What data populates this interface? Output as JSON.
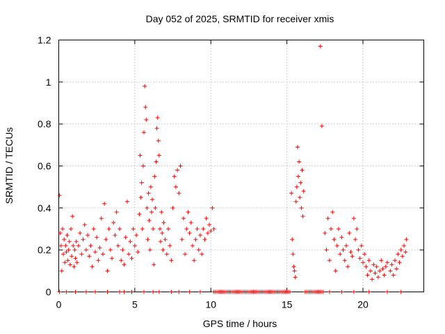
{
  "chart_data": {
    "type": "scatter",
    "title": "Day 052 of 2025, SRMTID for receiver xmis",
    "xlabel": "GPS time / hours",
    "ylabel": "SRMTID / TECUs",
    "xlim": [
      0,
      24
    ],
    "ylim": [
      0,
      1.2
    ],
    "x_ticks": [
      0,
      5,
      10,
      15,
      20
    ],
    "x_tick_labels": [
      "0",
      "5",
      "10",
      "15",
      "20"
    ],
    "y_ticks": [
      0,
      0.2,
      0.4,
      0.6,
      0.8,
      1.0,
      1.2
    ],
    "y_tick_labels": [
      "0",
      "0.2",
      "0.4",
      "0.6",
      "0.8",
      "1",
      "1.2"
    ],
    "grid": true,
    "marker": "plus",
    "color": "#ff0000",
    "series": [
      {
        "name": "SRMTID",
        "points": [
          [
            0.05,
            0.46
          ],
          [
            0.1,
            0.28
          ],
          [
            0.15,
            0.22
          ],
          [
            0.2,
            0.1
          ],
          [
            0.25,
            0.3
          ],
          [
            0.3,
            0.18
          ],
          [
            0.35,
            0.25
          ],
          [
            0.4,
            0.14
          ],
          [
            0.45,
            0.22
          ],
          [
            0.5,
            0.19
          ],
          [
            0.55,
            0.27
          ],
          [
            0.6,
            0.15
          ],
          [
            0.65,
            0.2
          ],
          [
            0.7,
            0.24
          ],
          [
            0.75,
            0.13
          ],
          [
            0.8,
            0.3
          ],
          [
            0.85,
            0.17
          ],
          [
            0.9,
            0.36
          ],
          [
            0.95,
            0.22
          ],
          [
            1.0,
            0.12
          ],
          [
            1.05,
            0.2
          ],
          [
            1.1,
            0.16
          ],
          [
            1.15,
            0.24
          ],
          [
            1.2,
            0.14
          ],
          [
            1.3,
            0.22
          ],
          [
            1.4,
            0.28
          ],
          [
            1.5,
            0.18
          ],
          [
            1.6,
            0.25
          ],
          [
            1.7,
            0.32
          ],
          [
            1.8,
            0.2
          ],
          [
            1.9,
            0.27
          ],
          [
            2.0,
            0.17
          ],
          [
            2.1,
            0.22
          ],
          [
            2.2,
            0.12
          ],
          [
            2.3,
            0.3
          ],
          [
            2.4,
            0.19
          ],
          [
            2.5,
            0.26
          ],
          [
            2.6,
            0.15
          ],
          [
            2.7,
            0.21
          ],
          [
            2.8,
            0.35
          ],
          [
            2.9,
            0.18
          ],
          [
            3.0,
            0.42
          ],
          [
            3.1,
            0.25
          ],
          [
            3.2,
            0.1
          ],
          [
            3.3,
            0.3
          ],
          [
            3.4,
            0.2
          ],
          [
            3.5,
            0.16
          ],
          [
            3.6,
            0.33
          ],
          [
            3.7,
            0.27
          ],
          [
            3.8,
            0.38
          ],
          [
            3.9,
            0.22
          ],
          [
            4.0,
            0.3
          ],
          [
            4.1,
            0.15
          ],
          [
            4.2,
            0.2
          ],
          [
            4.3,
            0.13
          ],
          [
            4.4,
            0.26
          ],
          [
            4.5,
            0.43
          ],
          [
            4.6,
            0.18
          ],
          [
            4.7,
            0.24
          ],
          [
            4.8,
            0.16
          ],
          [
            4.9,
            0.3
          ],
          [
            5.0,
            0.22
          ],
          [
            5.1,
            0.27
          ],
          [
            5.2,
            0.19
          ],
          [
            5.3,
            0.37
          ],
          [
            5.35,
            0.65
          ],
          [
            5.4,
            0.45
          ],
          [
            5.45,
            0.52
          ],
          [
            5.5,
            0.3
          ],
          [
            5.55,
            0.6
          ],
          [
            5.6,
            0.76
          ],
          [
            5.65,
            0.98
          ],
          [
            5.7,
            0.88
          ],
          [
            5.75,
            0.82
          ],
          [
            5.8,
            0.4
          ],
          [
            5.85,
            0.25
          ],
          [
            5.9,
            0.47
          ],
          [
            5.95,
            0.34
          ],
          [
            6.0,
            0.2
          ],
          [
            6.05,
            0.5
          ],
          [
            6.1,
            0.38
          ],
          [
            6.15,
            0.44
          ],
          [
            6.2,
            0.3
          ],
          [
            6.25,
            0.13
          ],
          [
            6.3,
            0.55
          ],
          [
            6.35,
            0.4
          ],
          [
            6.4,
            0.62
          ],
          [
            6.45,
            0.78
          ],
          [
            6.5,
            0.83
          ],
          [
            6.55,
            0.72
          ],
          [
            6.6,
            0.65
          ],
          [
            6.65,
            0.3
          ],
          [
            6.7,
            0.24
          ],
          [
            6.75,
            0.38
          ],
          [
            6.8,
            0.28
          ],
          [
            6.85,
            0.2
          ],
          [
            6.9,
            0.33
          ],
          [
            7.0,
            0.25
          ],
          [
            7.1,
            0.18
          ],
          [
            7.2,
            0.3
          ],
          [
            7.3,
            0.22
          ],
          [
            7.4,
            0.15
          ],
          [
            7.5,
            0.4
          ],
          [
            7.6,
            0.55
          ],
          [
            7.7,
            0.5
          ],
          [
            7.8,
            0.58
          ],
          [
            7.9,
            0.47
          ],
          [
            8.0,
            0.6
          ],
          [
            8.1,
            0.25
          ],
          [
            8.2,
            0.35
          ],
          [
            8.3,
            0.18
          ],
          [
            8.4,
            0.3
          ],
          [
            8.5,
            0.38
          ],
          [
            8.6,
            0.28
          ],
          [
            8.7,
            0.33
          ],
          [
            8.8,
            0.22
          ],
          [
            8.9,
            0.15
          ],
          [
            9.0,
            0.25
          ],
          [
            9.1,
            0.3
          ],
          [
            9.2,
            0.2
          ],
          [
            9.3,
            0.27
          ],
          [
            9.4,
            0.18
          ],
          [
            9.5,
            0.3
          ],
          [
            9.6,
            0.25
          ],
          [
            9.7,
            0.35
          ],
          [
            9.8,
            0.28
          ],
          [
            9.9,
            0.32
          ],
          [
            10.0,
            0.29
          ],
          [
            10.1,
            0.4
          ],
          [
            10.2,
            0.3
          ],
          [
            15.3,
            0.47
          ],
          [
            15.35,
            0.25
          ],
          [
            15.4,
            0.18
          ],
          [
            15.45,
            0.12
          ],
          [
            15.5,
            0.1
          ],
          [
            15.55,
            0.07
          ],
          [
            15.6,
            0.43
          ],
          [
            15.65,
            0.5
          ],
          [
            15.7,
            0.69
          ],
          [
            15.75,
            0.55
          ],
          [
            15.8,
            0.62
          ],
          [
            15.85,
            0.45
          ],
          [
            15.9,
            0.52
          ],
          [
            15.95,
            0.4
          ],
          [
            16.0,
            0.58
          ],
          [
            16.05,
            0.36
          ],
          [
            16.1,
            0.48
          ],
          [
            17.2,
            1.17
          ],
          [
            17.3,
            0.79
          ],
          [
            17.5,
            0.28
          ],
          [
            17.6,
            0.2
          ],
          [
            17.7,
            0.35
          ],
          [
            17.8,
            0.15
          ],
          [
            17.9,
            0.3
          ],
          [
            18.0,
            0.38
          ],
          [
            18.1,
            0.25
          ],
          [
            18.2,
            0.1
          ],
          [
            18.3,
            0.22
          ],
          [
            18.4,
            0.3
          ],
          [
            18.5,
            0.18
          ],
          [
            18.6,
            0.26
          ],
          [
            18.7,
            0.2
          ],
          [
            18.8,
            0.15
          ],
          [
            18.9,
            0.22
          ],
          [
            19.0,
            0.12
          ],
          [
            19.1,
            0.28
          ],
          [
            19.2,
            0.19
          ],
          [
            19.3,
            0.17
          ],
          [
            19.4,
            0.35
          ],
          [
            19.5,
            0.25
          ],
          [
            19.6,
            0.3
          ],
          [
            19.7,
            0.2
          ],
          [
            19.8,
            0.16
          ],
          [
            19.9,
            0.22
          ],
          [
            20.0,
            0.14
          ],
          [
            20.1,
            0.18
          ],
          [
            20.2,
            0.12
          ],
          [
            20.3,
            0.08
          ],
          [
            20.4,
            0.15
          ],
          [
            20.5,
            0.1
          ],
          [
            20.6,
            0.06
          ],
          [
            20.7,
            0.13
          ],
          [
            20.8,
            0.09
          ],
          [
            20.9,
            0.12
          ],
          [
            21.0,
            0.07
          ],
          [
            21.1,
            0.1
          ],
          [
            21.2,
            0.15
          ],
          [
            21.3,
            0.11
          ],
          [
            21.4,
            0.08
          ],
          [
            21.5,
            0.12
          ],
          [
            21.6,
            0.14
          ],
          [
            21.8,
            0.1
          ],
          [
            21.9,
            0.13
          ],
          [
            22.0,
            0.08
          ],
          [
            22.1,
            0.15
          ],
          [
            22.2,
            0.11
          ],
          [
            22.3,
            0.18
          ],
          [
            22.4,
            0.14
          ],
          [
            22.5,
            0.2
          ],
          [
            22.6,
            0.17
          ],
          [
            22.7,
            0.22
          ],
          [
            22.8,
            0.19
          ],
          [
            22.85,
            0.25
          ]
        ],
        "zero_points": [
          0.05,
          0.5,
          1.1,
          1.8,
          2.4,
          3.2,
          4.0,
          4.3,
          4.8,
          5.6,
          6.2,
          6.6,
          7.4,
          7.9,
          8.6,
          9.3,
          10.2,
          10.3,
          10.4,
          10.5,
          10.6,
          10.7,
          10.8,
          10.9,
          11.0,
          11.1,
          11.2,
          11.3,
          11.4,
          11.5,
          11.6,
          11.7,
          11.8,
          11.9,
          12.0,
          12.1,
          12.2,
          12.3,
          12.4,
          12.5,
          12.6,
          12.7,
          12.8,
          12.9,
          13.0,
          13.1,
          13.2,
          13.3,
          13.4,
          13.5,
          13.6,
          13.7,
          13.8,
          13.9,
          14.0,
          14.1,
          14.2,
          14.3,
          14.4,
          14.5,
          14.6,
          14.7,
          14.8,
          14.9,
          15.0,
          15.1,
          15.2,
          16.2,
          16.3,
          16.4,
          16.5,
          16.6,
          16.7,
          16.8,
          16.9,
          17.0,
          17.1,
          17.2,
          17.3,
          17.4,
          17.8,
          18.6,
          19.4,
          20.4,
          21.6,
          22.5
        ]
      }
    ]
  }
}
